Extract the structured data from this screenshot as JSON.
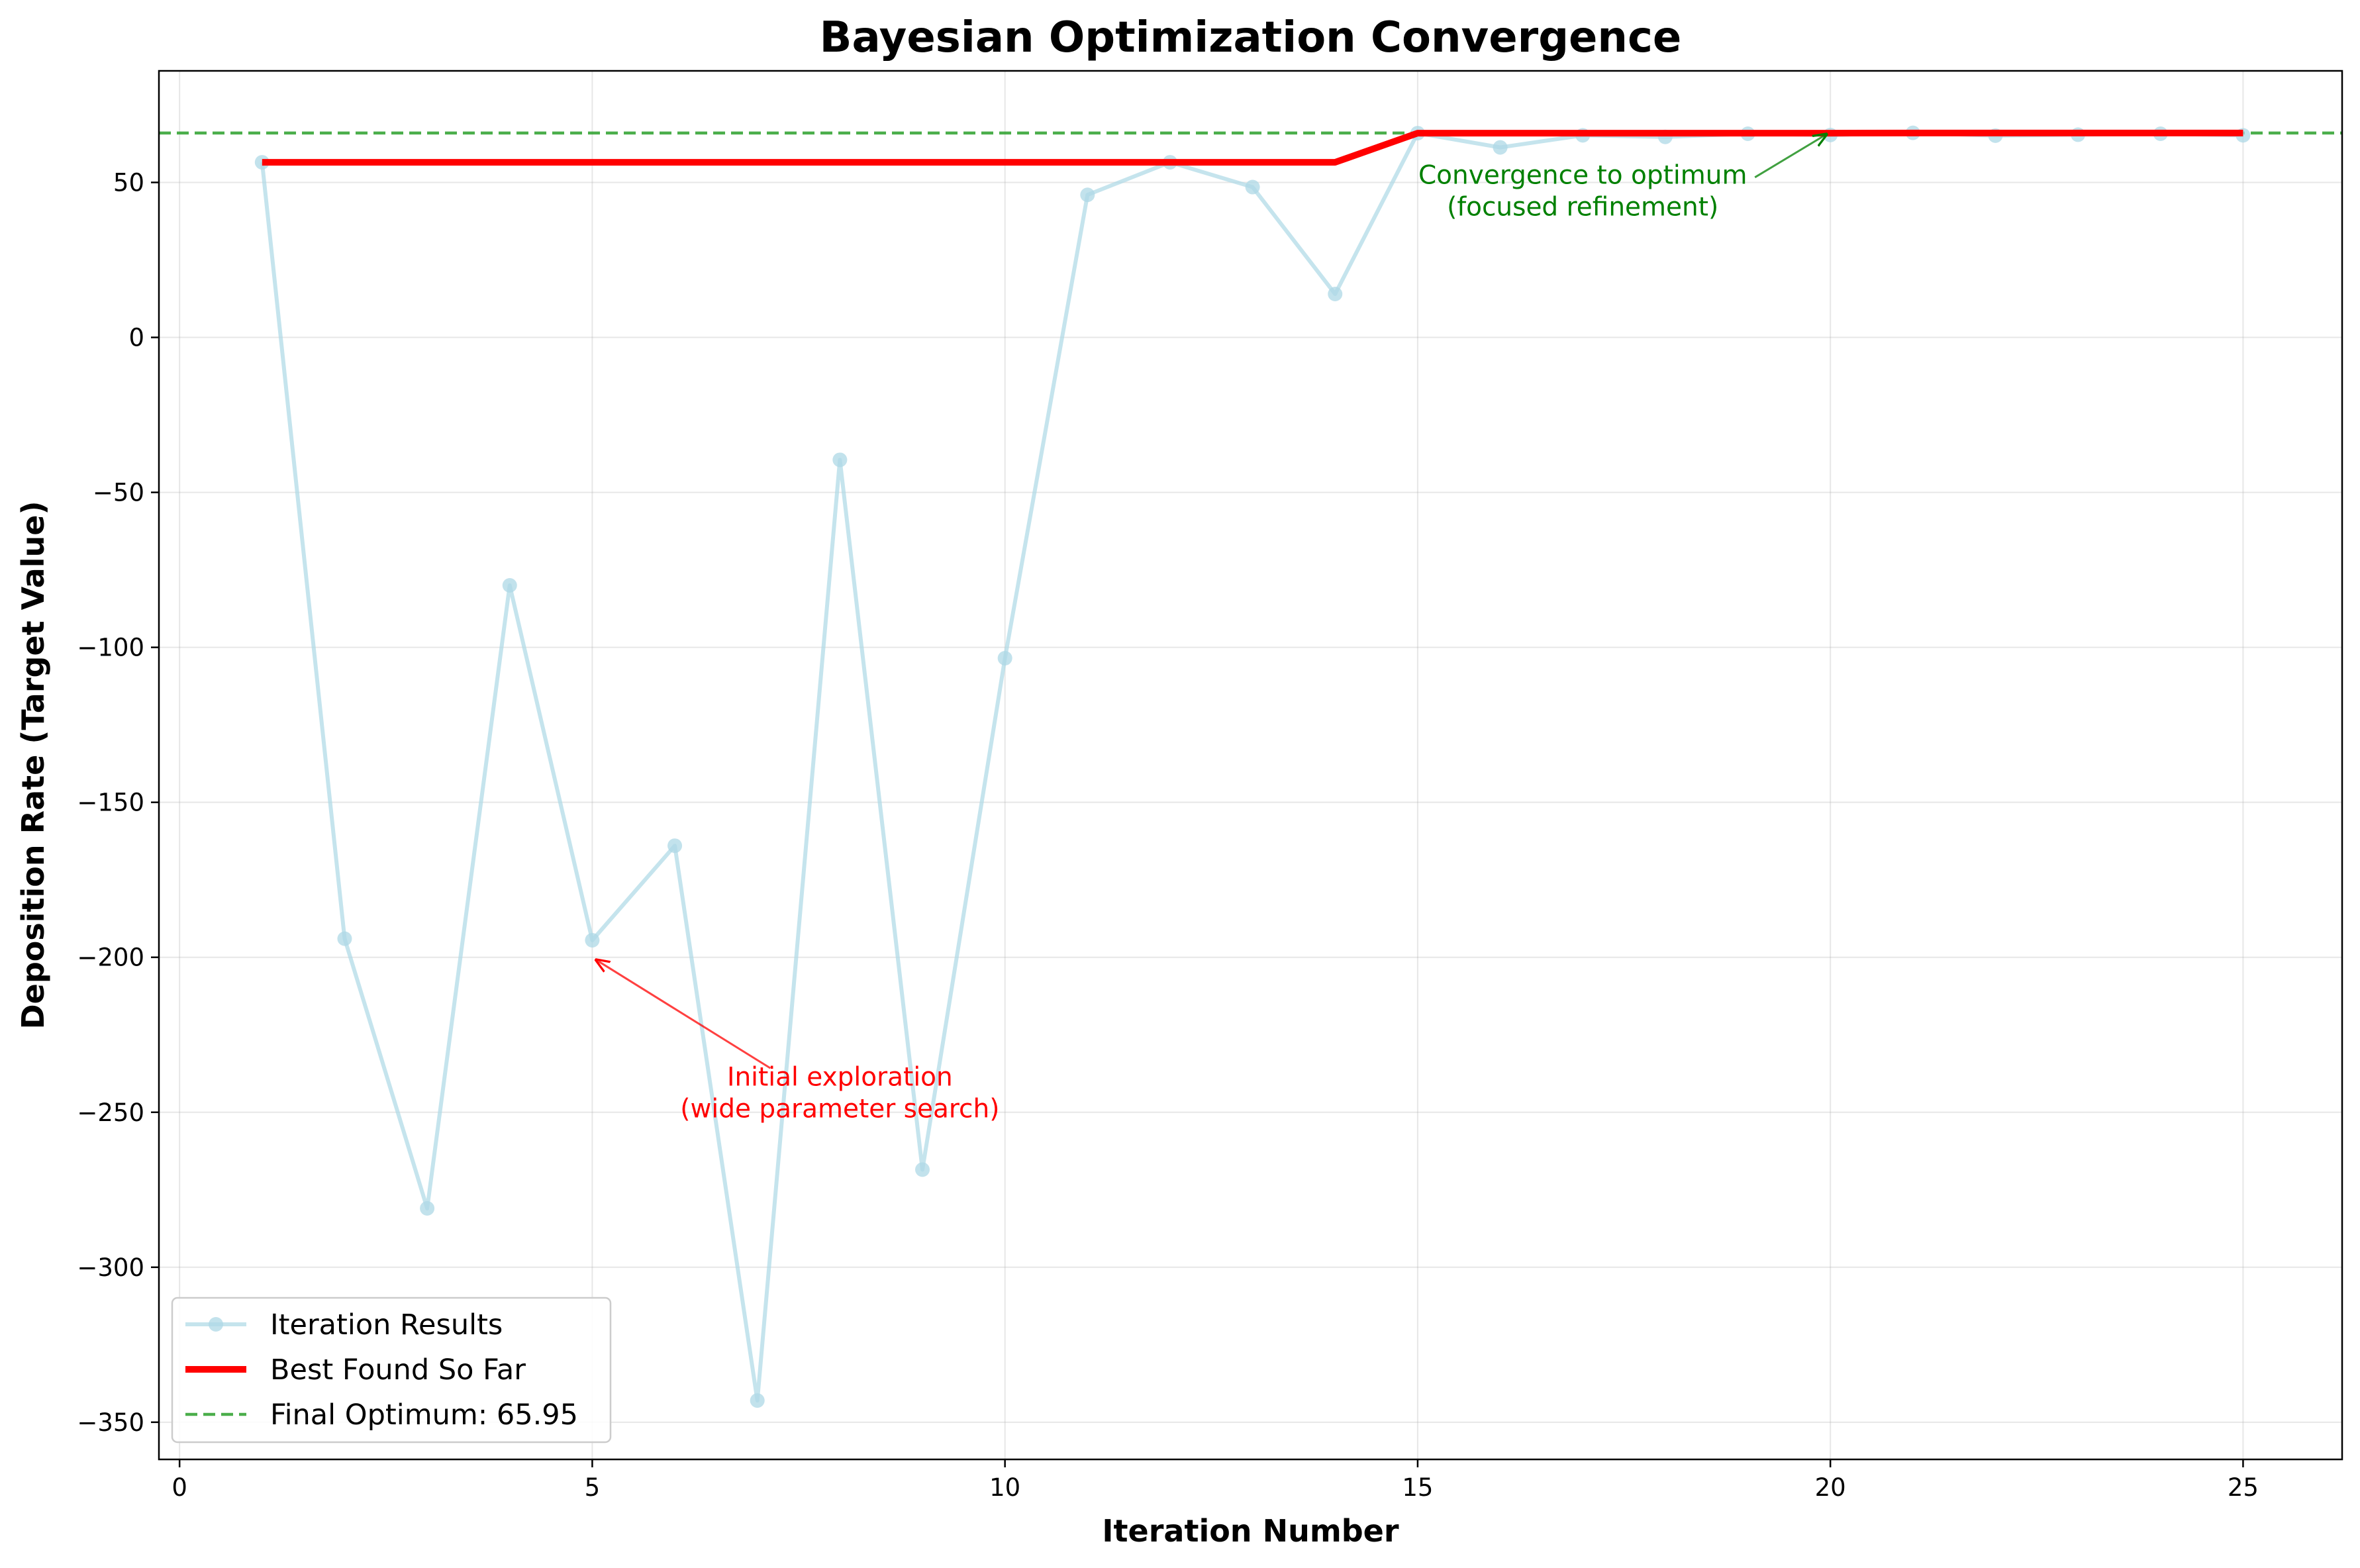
{
  "chart_data": {
    "type": "line",
    "title": "Bayesian Optimization Convergence",
    "xlabel": "Iteration Number",
    "ylabel": "Deposition Rate (Target Value)",
    "xlim": [
      -0.25,
      26.2
    ],
    "ylim": [
      -362,
      86
    ],
    "xticks": [
      0,
      5,
      10,
      15,
      20,
      25
    ],
    "yticks": [
      -350,
      -300,
      -250,
      -200,
      -150,
      -100,
      -50,
      0,
      50
    ],
    "grid": true,
    "legend_position": "lower-left",
    "series": [
      {
        "name": "Iteration Results",
        "style": "line-markers",
        "color": "#add8e6",
        "x": [
          1,
          2,
          3,
          4,
          5,
          6,
          7,
          8,
          9,
          10,
          11,
          12,
          13,
          14,
          15,
          16,
          17,
          18,
          19,
          20,
          21,
          22,
          23,
          24,
          25
        ],
        "values": [
          56.5,
          -194,
          -281,
          -80,
          -194.5,
          -164,
          -343,
          -39.5,
          -268.5,
          -103.5,
          46,
          56.5,
          48.5,
          14,
          65.9,
          61.3,
          65.2,
          64.7,
          65.7,
          65.3,
          66,
          65.1,
          65.4,
          65.7,
          65.2
        ]
      },
      {
        "name": "Best Found So Far",
        "style": "line",
        "color": "#ff0000",
        "x": [
          1,
          2,
          3,
          4,
          5,
          6,
          7,
          8,
          9,
          10,
          11,
          12,
          13,
          14,
          15,
          16,
          17,
          18,
          19,
          20,
          21,
          22,
          23,
          24,
          25
        ],
        "values": [
          56.5,
          56.5,
          56.5,
          56.5,
          56.5,
          56.5,
          56.5,
          56.5,
          56.5,
          56.5,
          56.5,
          56.5,
          56.5,
          56.5,
          65.9,
          65.9,
          65.9,
          65.9,
          65.9,
          65.9,
          65.95,
          65.95,
          65.95,
          65.95,
          65.95
        ]
      },
      {
        "name": "Final Optimum: 65.95",
        "style": "dashed-hline",
        "color": "#2ca02c",
        "value": 65.95
      }
    ],
    "annotations": [
      {
        "lines": [
          "Initial exploration",
          "(wide parameter search)"
        ],
        "text_at": [
          8.0,
          -245
        ],
        "arrow_to": [
          5,
          -200
        ],
        "color": "#ff0000"
      },
      {
        "lines": [
          "Convergence to optimum",
          "(focused refinement)"
        ],
        "text_at": [
          17.0,
          46
        ],
        "arrow_to": [
          20,
          65.95
        ],
        "color": "#008000"
      }
    ]
  }
}
